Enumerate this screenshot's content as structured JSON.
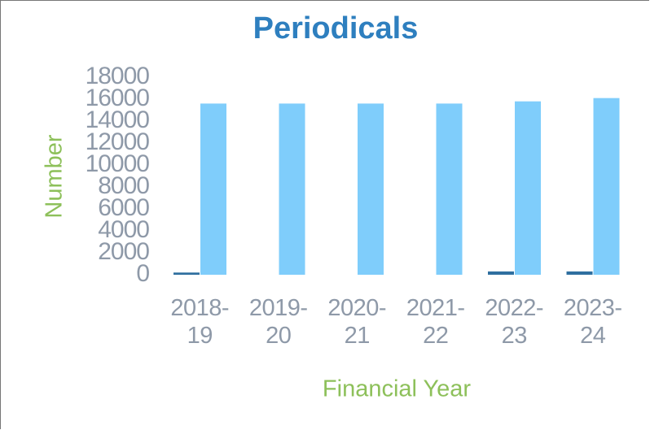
{
  "chart_data": {
    "type": "bar",
    "title": "Periodicals",
    "categories": [
      "2018-19",
      "2019-20",
      "2020-21",
      "2021-22",
      "2022-23",
      "2023-24"
    ],
    "series": [
      {
        "color": "#2f6f9f",
        "values": [
          200,
          0,
          0,
          0,
          300,
          300
        ]
      },
      {
        "color": "#7fcdfb",
        "values": [
          15600,
          15600,
          15600,
          15600,
          15800,
          16100
        ]
      }
    ],
    "ylim": [
      0,
      18000
    ],
    "yticks": [
      0,
      2000,
      4000,
      6000,
      8000,
      10000,
      12000,
      14000,
      16000,
      18000
    ],
    "y_label": "Number",
    "x_label": "Financial Year",
    "grid": false
  }
}
